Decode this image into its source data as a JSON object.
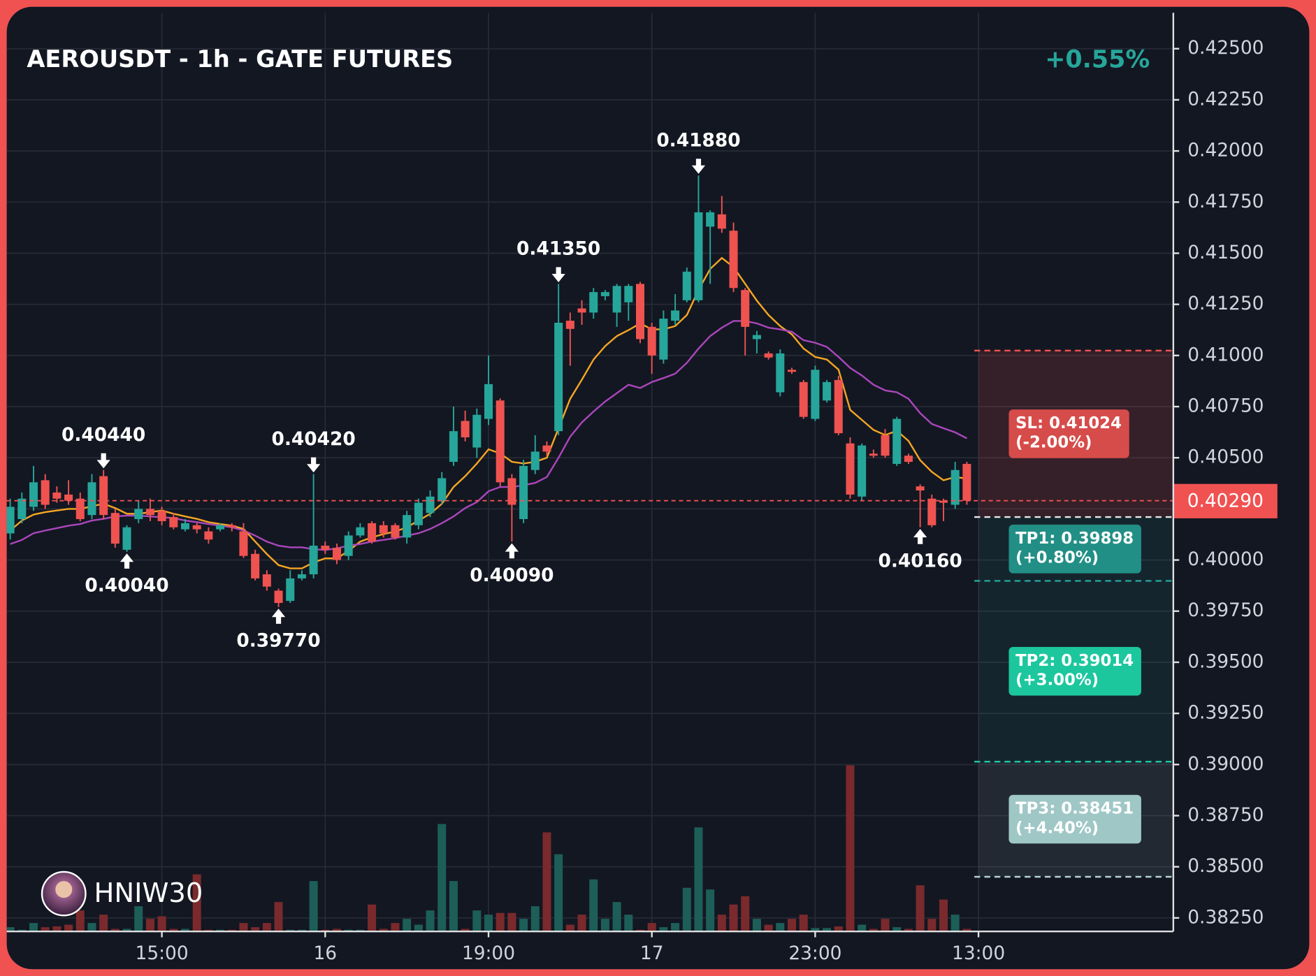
{
  "chart_data": {
    "type": "candlestick",
    "title": "AEROUSDT - 1h - GATE FUTURES",
    "change": "+0.55%",
    "change_color": "#26a69a",
    "watermark": "HNIW30",
    "categories": [
      null,
      null,
      null,
      null,
      null,
      null,
      null,
      null,
      null,
      null,
      null,
      null,
      null,
      null,
      null,
      null,
      null,
      null,
      null,
      null,
      null,
      null,
      null,
      null,
      null,
      null,
      null,
      null,
      null,
      null,
      null,
      null,
      null,
      null,
      null,
      null,
      null,
      null,
      null,
      null,
      null,
      null,
      null,
      null,
      null,
      null,
      null,
      null,
      null,
      null,
      null,
      null,
      null,
      null,
      null,
      null,
      null,
      null,
      null,
      null,
      null,
      null,
      null,
      null,
      null,
      null,
      null,
      null,
      null,
      null,
      null,
      null,
      null,
      null,
      null,
      null,
      null,
      null,
      null,
      null,
      null,
      null,
      null
    ],
    "open": [
      0.4013,
      0.402,
      0.4026,
      0.4039,
      0.4033,
      0.4032,
      0.403,
      0.4022,
      0.4041,
      0.4023,
      0.4005,
      0.402,
      0.4025,
      0.4024,
      0.4021,
      0.4015,
      0.4017,
      0.4014,
      0.4015,
      0.4017,
      0.4014,
      0.4003,
      0.3993,
      0.3985,
      0.398,
      0.3991,
      0.3993,
      0.4007,
      0.4006,
      0.4002,
      0.4012,
      0.4018,
      0.4017,
      0.4017,
      0.4011,
      0.4017,
      0.4023,
      0.4029,
      0.4048,
      0.4068,
      0.4055,
      0.4069,
      0.4078,
      0.404,
      0.402,
      0.4044,
      0.4056,
      0.4063,
      0.4117,
      0.4123,
      0.4121,
      0.4129,
      0.4121,
      0.4126,
      0.4135,
      0.4114,
      0.4098,
      0.4117,
      0.4127,
      0.4127,
      0.4163,
      0.4169,
      0.4161,
      0.4132,
      0.4108,
      0.4101,
      0.4082,
      0.4093,
      0.4087,
      0.4069,
      0.4078,
      0.4088,
      0.4057,
      0.4031,
      0.4052,
      0.4061,
      0.4047,
      0.4051,
      0.4036,
      0.403,
      0.4029,
      0.4027,
      0.4047
    ],
    "high": [
      0.403,
      0.4033,
      0.4046,
      0.4042,
      0.4036,
      0.4039,
      0.4033,
      0.4042,
      0.4044,
      0.4025,
      0.4017,
      0.4029,
      0.403,
      0.4026,
      0.4023,
      0.402,
      0.4018,
      0.4016,
      0.4018,
      0.4018,
      0.4018,
      0.4005,
      0.3995,
      0.3986,
      0.3995,
      0.3995,
      0.4042,
      0.4009,
      0.4008,
      0.4014,
      0.4018,
      0.4019,
      0.4019,
      0.4018,
      0.4024,
      0.403,
      0.4034,
      0.4043,
      0.4075,
      0.4073,
      0.4074,
      0.41,
      0.4079,
      0.4042,
      0.4049,
      0.4061,
      0.4058,
      0.4135,
      0.4121,
      0.4127,
      0.4133,
      0.4132,
      0.4135,
      0.4135,
      0.4136,
      0.4116,
      0.4122,
      0.413,
      0.4143,
      0.4188,
      0.4171,
      0.4178,
      0.4165,
      0.4133,
      0.4112,
      0.4102,
      0.4103,
      0.4094,
      0.4088,
      0.4095,
      0.4088,
      0.409,
      0.406,
      0.4057,
      0.4054,
      0.4064,
      0.407,
      0.4052,
      0.4037,
      0.4032,
      0.403,
      0.4048,
      0.4048
    ],
    "low": [
      0.401,
      0.4018,
      0.4024,
      0.4025,
      0.4028,
      0.4027,
      0.4019,
      0.402,
      0.402,
      0.4006,
      0.4004,
      0.4018,
      0.4019,
      0.4017,
      0.4015,
      0.4014,
      0.4013,
      0.4008,
      0.4014,
      0.4014,
      0.4001,
      0.399,
      0.3985,
      0.3977,
      0.3979,
      0.399,
      0.3991,
      0.4003,
      0.3998,
      0.4,
      0.4011,
      0.4008,
      0.4011,
      0.401,
      0.4008,
      0.4015,
      0.4021,
      0.4027,
      0.4046,
      0.4058,
      0.405,
      0.4066,
      0.4036,
      0.4009,
      0.4018,
      0.4042,
      0.4051,
      0.4061,
      0.4095,
      0.4115,
      0.4118,
      0.4127,
      0.4114,
      0.4117,
      0.4106,
      0.4091,
      0.4096,
      0.4115,
      0.4126,
      0.4126,
      0.4135,
      0.416,
      0.4131,
      0.41,
      0.4101,
      0.4098,
      0.408,
      0.4091,
      0.4069,
      0.4068,
      0.4077,
      0.4061,
      0.403,
      0.4029,
      0.405,
      0.405,
      0.4046,
      0.4047,
      0.4016,
      0.4016,
      0.4019,
      0.4025,
      0.4027
    ],
    "close": [
      0.4026,
      0.403,
      0.4038,
      0.4027,
      0.403,
      0.4029,
      0.402,
      0.4038,
      0.4022,
      0.4008,
      0.4016,
      0.4025,
      0.4022,
      0.4019,
      0.4016,
      0.4018,
      0.4015,
      0.401,
      0.4017,
      0.4016,
      0.4002,
      0.3991,
      0.3987,
      0.3979,
      0.3991,
      0.3993,
      0.4007,
      0.4005,
      0.4,
      0.4012,
      0.4016,
      0.4009,
      0.4013,
      0.4011,
      0.4022,
      0.4028,
      0.4031,
      0.404,
      0.4063,
      0.406,
      0.4071,
      0.4086,
      0.4038,
      0.4027,
      0.4046,
      0.4053,
      0.4053,
      0.4116,
      0.4113,
      0.4121,
      0.4131,
      0.4131,
      0.4134,
      0.4134,
      0.4108,
      0.41,
      0.4118,
      0.4122,
      0.4141,
      0.417,
      0.417,
      0.4162,
      0.4133,
      0.4114,
      0.411,
      0.4099,
      0.4101,
      0.4092,
      0.407,
      0.4093,
      0.4087,
      0.4062,
      0.4032,
      0.4056,
      0.4051,
      0.4051,
      0.4069,
      0.4048,
      0.4034,
      0.4017,
      0.4028,
      0.4044,
      0.4029
    ],
    "volume": [
      5,
      2,
      10,
      5,
      6,
      8,
      25,
      10,
      20,
      3,
      3,
      30,
      15,
      18,
      3,
      3,
      68,
      2,
      2,
      2,
      10,
      5,
      10,
      35,
      2,
      2,
      60,
      2,
      3,
      2,
      2,
      32,
      3,
      10,
      15,
      8,
      25,
      128,
      60,
      3,
      25,
      20,
      22,
      22,
      15,
      30,
      118,
      92,
      8,
      20,
      62,
      15,
      35,
      20,
      2,
      10,
      5,
      10,
      52,
      124,
      50,
      20,
      32,
      42,
      15,
      8,
      10,
      15,
      20,
      4,
      4,
      6,
      198,
      8,
      3,
      15,
      5,
      3,
      55,
      15,
      38,
      20,
      3
    ],
    "up_color": "#26a69a",
    "down_color": "#ef5350",
    "volume_up_color": "#1d5e59",
    "volume_down_color": "#7a2a2c",
    "lines": [
      {
        "color": "#f5a623",
        "values": [
          0.40144,
          0.40193,
          0.40222,
          0.40234,
          0.40242,
          0.4025,
          0.4025,
          0.40263,
          0.40275,
          0.40254,
          0.40226,
          0.40226,
          0.40234,
          0.40242,
          0.40226,
          0.40213,
          0.40201,
          0.40185,
          0.40176,
          0.40168,
          0.40152,
          0.4009,
          0.40029,
          0.39975,
          0.39959,
          0.39959,
          0.39988,
          0.40008,
          0.40008,
          0.40045,
          0.4009,
          0.40111,
          0.40127,
          0.40139,
          0.4016,
          0.40193,
          0.40226,
          0.40275,
          0.40357,
          0.4041,
          0.40472,
          0.40541,
          0.40521,
          0.4048,
          0.40472,
          0.4048,
          0.405,
          0.40644,
          0.40788,
          0.40882,
          0.4098,
          0.41046,
          0.41095,
          0.41124,
          0.41157,
          0.41128,
          0.41128,
          0.41144,
          0.41198,
          0.41321,
          0.41423,
          0.41477,
          0.41432,
          0.4135,
          0.41268,
          0.41198,
          0.41144,
          0.41103,
          0.41034,
          0.40993,
          0.4098,
          0.40931,
          0.40734,
          0.40685,
          0.40636,
          0.40611,
          0.40632,
          0.40582,
          0.40488,
          0.40431,
          0.4039,
          0.40406,
          0.40398
        ]
      },
      {
        "color": "#ab47bc",
        "values": [
          0.40078,
          0.40098,
          0.40131,
          0.40144,
          0.40156,
          0.40168,
          0.40176,
          0.40193,
          0.40201,
          0.40213,
          0.40217,
          0.40217,
          0.40213,
          0.40209,
          0.40205,
          0.40193,
          0.40185,
          0.40176,
          0.40168,
          0.4016,
          0.40144,
          0.40119,
          0.4009,
          0.4007,
          0.40062,
          0.40062,
          0.40053,
          0.40049,
          0.40057,
          0.4007,
          0.40078,
          0.4009,
          0.40098,
          0.40107,
          0.40119,
          0.40131,
          0.40152,
          0.4018,
          0.40213,
          0.40254,
          0.40283,
          0.40336,
          0.40357,
          0.40357,
          0.40365,
          0.40377,
          0.40406,
          0.405,
          0.40603,
          0.40673,
          0.40726,
          0.40775,
          0.40816,
          0.40857,
          0.40841,
          0.4087,
          0.4089,
          0.40911,
          0.40964,
          0.41034,
          0.41095,
          0.41136,
          0.41169,
          0.41169,
          0.41157,
          0.41136,
          0.41128,
          0.41116,
          0.41075,
          0.41062,
          0.41042,
          0.40993,
          0.40939,
          0.40902,
          0.40857,
          0.40829,
          0.4082,
          0.40788,
          0.40718,
          0.40665,
          0.40644,
          0.40624,
          0.40595
        ]
      }
    ],
    "annotations": [
      {
        "index": 8,
        "kind": "high",
        "value": 0.4044,
        "label": "0.40440"
      },
      {
        "index": 10,
        "kind": "low",
        "value": 0.4004,
        "label": "0.40040"
      },
      {
        "index": 23,
        "kind": "low",
        "value": 0.3977,
        "label": "0.39770"
      },
      {
        "index": 26,
        "kind": "high",
        "value": 0.4042,
        "label": "0.40420"
      },
      {
        "index": 43,
        "kind": "low",
        "value": 0.4009,
        "label": "0.40090"
      },
      {
        "index": 47,
        "kind": "high",
        "value": 0.4135,
        "label": "0.41350"
      },
      {
        "index": 59,
        "kind": "high",
        "value": 0.4188,
        "label": "0.41880"
      },
      {
        "index": 78,
        "kind": "low",
        "value": 0.4016,
        "label": "0.40160"
      }
    ],
    "last_price": {
      "value": 0.4029,
      "label": "0.40290",
      "color": "#f05252"
    },
    "entry": {
      "value": 0.4021,
      "color": "#e8e8e8"
    },
    "levels": [
      {
        "label": "SL: 0.41024",
        "sub": "(-2.00%)",
        "value": 0.41024,
        "color": "#ef5350",
        "box_color": "#d64c4a",
        "zone_color": "rgba(239,83,80,0.16)"
      },
      {
        "label": "TP1: 0.39898",
        "sub": "(+0.80%)",
        "value": 0.39898,
        "color": "#26a69a",
        "box_color": "#228f86",
        "zone_color": "rgba(38,166,154,0.10)"
      },
      {
        "label": "TP2: 0.39014",
        "sub": "(+3.00%)",
        "value": 0.39014,
        "color": "#1dc9a0",
        "box_color": "#1cc79e",
        "zone_color": "rgba(38,166,154,0.10)"
      },
      {
        "label": "TP3: 0.38451",
        "sub": "(+4.40%)",
        "value": 0.38451,
        "color": "#b7d3d3",
        "box_color": "#9fc7c6",
        "zone_color": "rgba(150,170,180,0.12)"
      }
    ],
    "xlim": [
      -0.3,
      99.7
    ],
    "xticks": [
      {
        "value": 13,
        "label": "15:00"
      },
      {
        "value": 27,
        "label": "16"
      },
      {
        "value": 41,
        "label": "19:00"
      },
      {
        "value": 55,
        "label": "17"
      },
      {
        "value": 69,
        "label": "23:00"
      },
      {
        "value": 83,
        "label": "13:00"
      }
    ],
    "ylim": [
      0.38184,
      0.42676
    ],
    "yticks": [
      {
        "value": 0.425,
        "label": "0.42500"
      },
      {
        "value": 0.4225,
        "label": "0.42250"
      },
      {
        "value": 0.42,
        "label": "0.42000"
      },
      {
        "value": 0.4175,
        "label": "0.41750"
      },
      {
        "value": 0.415,
        "label": "0.41500"
      },
      {
        "value": 0.4125,
        "label": "0.41250"
      },
      {
        "value": 0.41,
        "label": "0.41000"
      },
      {
        "value": 0.4075,
        "label": "0.40750"
      },
      {
        "value": 0.405,
        "label": "0.40500"
      },
      {
        "value": 0.4025,
        "label": "0.40250"
      },
      {
        "value": 0.4,
        "label": "0.40000"
      },
      {
        "value": 0.3975,
        "label": "0.39750"
      },
      {
        "value": 0.395,
        "label": "0.39500"
      },
      {
        "value": 0.3925,
        "label": "0.39250"
      },
      {
        "value": 0.39,
        "label": "0.39000"
      },
      {
        "value": 0.3875,
        "label": "0.38750"
      },
      {
        "value": 0.385,
        "label": "0.38500"
      },
      {
        "value": 0.3825,
        "label": "0.38250"
      }
    ],
    "grid": true
  }
}
